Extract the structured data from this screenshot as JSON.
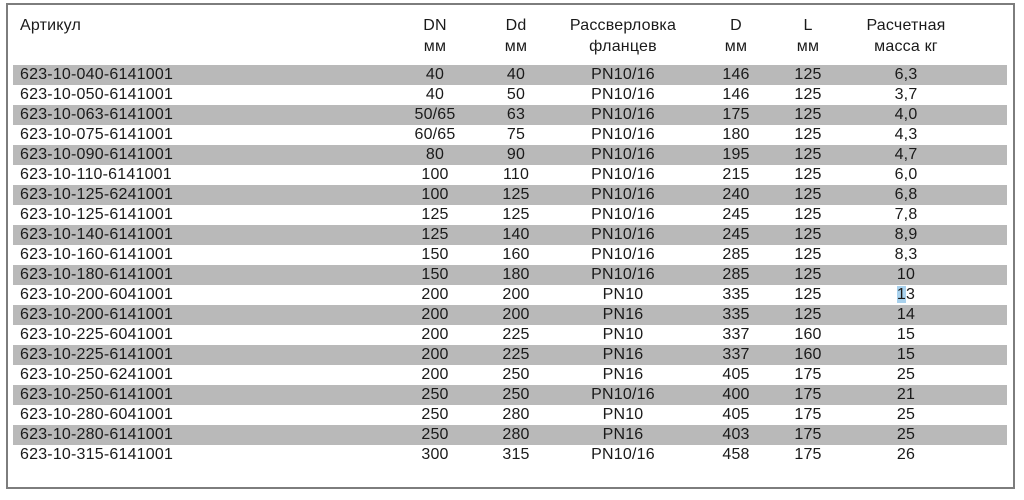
{
  "table": {
    "colors": {
      "stripe": "#b9b9b9",
      "border": "#7d7d7d",
      "text": "#1a1a1a",
      "selection": "#a9d2ee"
    },
    "columns": [
      {
        "id": "article",
        "line1": "Артикул",
        "line2": ""
      },
      {
        "id": "dn",
        "line1": "DN",
        "line2": "мм"
      },
      {
        "id": "dd",
        "line1": "Dd",
        "line2": "мм"
      },
      {
        "id": "pn",
        "line1": "Рассверловка",
        "line2": "фланцев"
      },
      {
        "id": "d",
        "line1": "D",
        "line2": "мм"
      },
      {
        "id": "l",
        "line1": "L",
        "line2": "мм"
      },
      {
        "id": "mass",
        "line1": "Расчетная",
        "line2": "масса кг"
      }
    ],
    "rows": [
      {
        "article": "623-10-040-6141001",
        "dn": "40",
        "dd": "40",
        "pn": "PN10/16",
        "d": "146",
        "l": "125",
        "mass": "6,3"
      },
      {
        "article": "623-10-050-6141001",
        "dn": "40",
        "dd": "50",
        "pn": "PN10/16",
        "d": "146",
        "l": "125",
        "mass": "3,7"
      },
      {
        "article": "623-10-063-6141001",
        "dn": "50/65",
        "dd": "63",
        "pn": "PN10/16",
        "d": "175",
        "l": "125",
        "mass": "4,0"
      },
      {
        "article": "623-10-075-6141001",
        "dn": "60/65",
        "dd": "75",
        "pn": "PN10/16",
        "d": "180",
        "l": "125",
        "mass": "4,3"
      },
      {
        "article": "623-10-090-6141001",
        "dn": "80",
        "dd": "90",
        "pn": "PN10/16",
        "d": "195",
        "l": "125",
        "mass": "4,7"
      },
      {
        "article": "623-10-110-6141001",
        "dn": "100",
        "dd": "110",
        "pn": "PN10/16",
        "d": "215",
        "l": "125",
        "mass": "6,0"
      },
      {
        "article": "623-10-125-6241001",
        "dn": "100",
        "dd": "125",
        "pn": "PN10/16",
        "d": "240",
        "l": "125",
        "mass": "6,8"
      },
      {
        "article": "623-10-125-6141001",
        "dn": "125",
        "dd": "125",
        "pn": "PN10/16",
        "d": "245",
        "l": "125",
        "mass": "7,8"
      },
      {
        "article": "623-10-140-6141001",
        "dn": "125",
        "dd": "140",
        "pn": "PN10/16",
        "d": "245",
        "l": "125",
        "mass": "8,9"
      },
      {
        "article": "623-10-160-6141001",
        "dn": "150",
        "dd": "160",
        "pn": "PN10/16",
        "d": "285",
        "l": "125",
        "mass": "8,3"
      },
      {
        "article": "623-10-180-6141001",
        "dn": "150",
        "dd": "180",
        "pn": "PN10/16",
        "d": "285",
        "l": "125",
        "mass": "10"
      },
      {
        "article": "623-10-200-6041001",
        "dn": "200",
        "dd": "200",
        "pn": "PN10",
        "d": "335",
        "l": "125",
        "mass": "13",
        "mass_selected": true
      },
      {
        "article": "623-10-200-6141001",
        "dn": "200",
        "dd": "200",
        "pn": "PN16",
        "d": "335",
        "l": "125",
        "mass": "14"
      },
      {
        "article": "623-10-225-6041001",
        "dn": "200",
        "dd": "225",
        "pn": "PN10",
        "d": "337",
        "l": "160",
        "mass": "15"
      },
      {
        "article": "623-10-225-6141001",
        "dn": "200",
        "dd": "225",
        "pn": "PN16",
        "d": "337",
        "l": "160",
        "mass": "15"
      },
      {
        "article": "623-10-250-6241001",
        "dn": "200",
        "dd": "250",
        "pn": "PN16",
        "d": "405",
        "l": "175",
        "mass": "25"
      },
      {
        "article": "623-10-250-6141001",
        "dn": "250",
        "dd": "250",
        "pn": "PN10/16",
        "d": "400",
        "l": "175",
        "mass": "21"
      },
      {
        "article": "623-10-280-6041001",
        "dn": "250",
        "dd": "280",
        "pn": "PN10",
        "d": "405",
        "l": "175",
        "mass": "25"
      },
      {
        "article": "623-10-280-6141001",
        "dn": "250",
        "dd": "280",
        "pn": "PN16",
        "d": "403",
        "l": "175",
        "mass": "25"
      },
      {
        "article": "623-10-315-6141001",
        "dn": "300",
        "dd": "315",
        "pn": "PN10/16",
        "d": "458",
        "l": "175",
        "mass": "26"
      }
    ]
  }
}
